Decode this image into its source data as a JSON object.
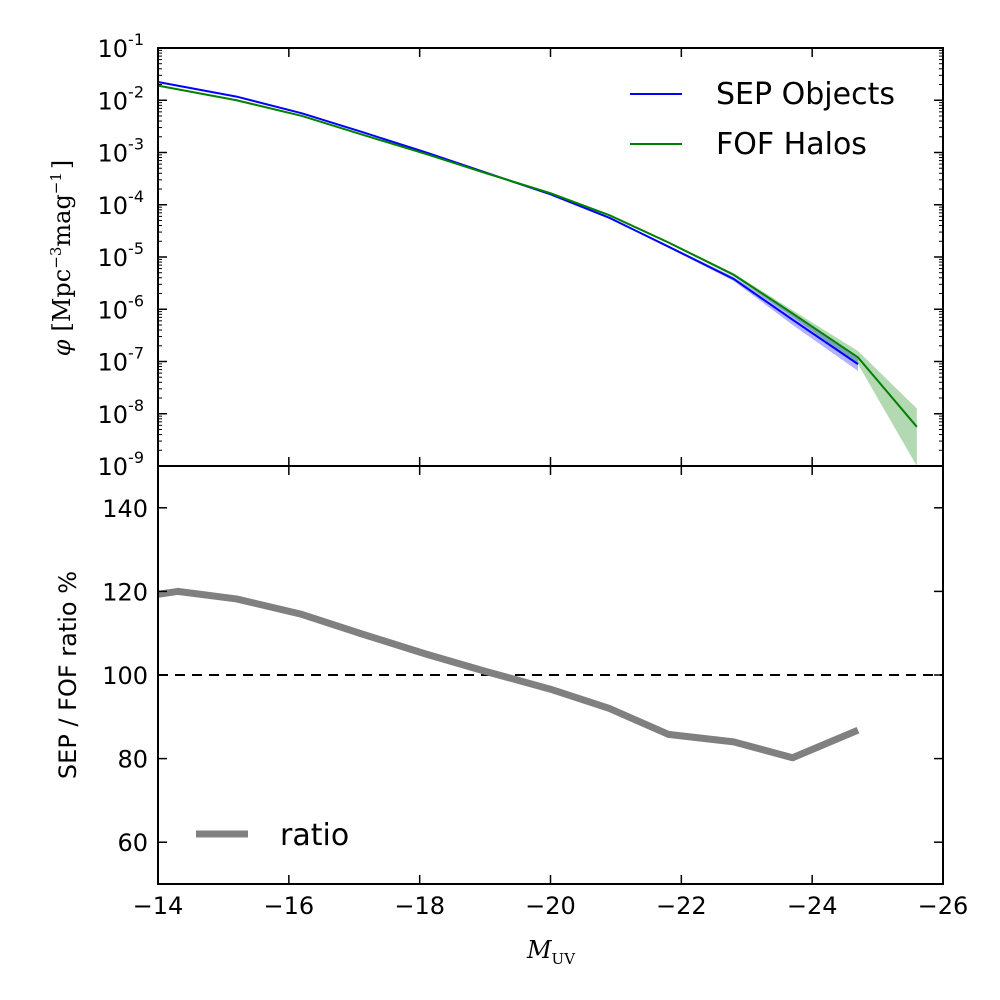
{
  "chart_data": [
    {
      "type": "line",
      "panel": "top",
      "yscale": "log",
      "xlim": [
        -14,
        -26
      ],
      "ylim_exp": [
        -9,
        -1
      ],
      "ylabel_symbol": "φ",
      "ylabel_unit_open": "[Mpc",
      "ylabel_unit_exp1": "−3",
      "ylabel_unit_mid": "mag",
      "ylabel_unit_exp2": "−1",
      "ylabel_unit_close": "]",
      "ytick_base": "10",
      "ytick_exps": [
        "-9",
        "-8",
        "-7",
        "-6",
        "-5",
        "-4",
        "-3",
        "-2",
        "-1"
      ],
      "series": [
        {
          "name": "SEP Objects",
          "color": "#0000ff",
          "x": [
            -14.0,
            -15.2,
            -16.2,
            -17.1,
            -18.1,
            -19.0,
            -20.0,
            -20.9,
            -21.8,
            -22.8,
            -23.7,
            -24.7
          ],
          "log10_y": [
            -1.65,
            -1.93,
            -2.25,
            -2.6,
            -3.0,
            -3.38,
            -3.8,
            -4.25,
            -4.8,
            -5.42,
            -6.2,
            -7.05
          ],
          "band_log10_lo": [
            -1.66,
            -1.94,
            -2.26,
            -2.61,
            -3.01,
            -3.39,
            -3.81,
            -4.26,
            -4.82,
            -5.46,
            -6.3,
            -7.18
          ],
          "band_log10_hi": [
            -1.64,
            -1.92,
            -2.24,
            -2.59,
            -2.99,
            -3.37,
            -3.79,
            -4.24,
            -4.78,
            -5.38,
            -6.1,
            -6.9
          ]
        },
        {
          "name": "FOF Halos",
          "color": "#008000",
          "x": [
            -14.0,
            -15.2,
            -16.2,
            -17.1,
            -18.1,
            -19.0,
            -20.0,
            -20.9,
            -21.8,
            -22.8,
            -23.7,
            -24.7,
            -25.6
          ],
          "log10_y": [
            -1.72,
            -2.0,
            -2.3,
            -2.65,
            -3.03,
            -3.39,
            -3.78,
            -4.2,
            -4.72,
            -5.34,
            -6.08,
            -6.92,
            -8.25
          ],
          "band_log10_lo": [
            -1.73,
            -2.01,
            -2.31,
            -2.66,
            -3.04,
            -3.4,
            -3.79,
            -4.21,
            -4.74,
            -5.37,
            -6.14,
            -7.05,
            -9.0
          ],
          "band_log10_hi": [
            -1.71,
            -1.99,
            -2.29,
            -2.64,
            -3.02,
            -3.38,
            -3.77,
            -4.19,
            -4.7,
            -5.31,
            -6.02,
            -6.8,
            -7.9
          ]
        }
      ],
      "legend": {
        "position": "top-right",
        "entries": [
          "SEP Objects",
          "FOF Halos"
        ]
      }
    },
    {
      "type": "line",
      "panel": "bottom",
      "xlim": [
        -14,
        -26
      ],
      "ylim": [
        50,
        150
      ],
      "xticks": [
        -14,
        -16,
        -18,
        -20,
        -22,
        -24,
        -26
      ],
      "xtick_labels": [
        "−14",
        "−16",
        "−18",
        "−20",
        "−22",
        "−24",
        "−26"
      ],
      "yticks": [
        60,
        80,
        100,
        120,
        140
      ],
      "ytick_labels": [
        "60",
        "80",
        "100",
        "120",
        "140"
      ],
      "ylabel": "SEP / FOF ratio %",
      "xlabel_main": "M",
      "xlabel_sub": "UV",
      "reference_line": {
        "y": 100,
        "style": "dashed",
        "color": "#000000"
      },
      "series": [
        {
          "name": "ratio",
          "color": "#808080",
          "x": [
            -14.0,
            -14.3,
            -15.2,
            -16.2,
            -17.1,
            -18.1,
            -19.0,
            -20.0,
            -20.9,
            -21.8,
            -22.8,
            -23.7,
            -24.7
          ],
          "y": [
            119.3,
            120.0,
            118.2,
            114.5,
            109.9,
            105.0,
            100.9,
            96.6,
            92.0,
            85.8,
            84.0,
            80.2,
            86.8
          ]
        }
      ],
      "legend": {
        "position": "bottom-left",
        "entries": [
          "ratio"
        ]
      }
    }
  ]
}
